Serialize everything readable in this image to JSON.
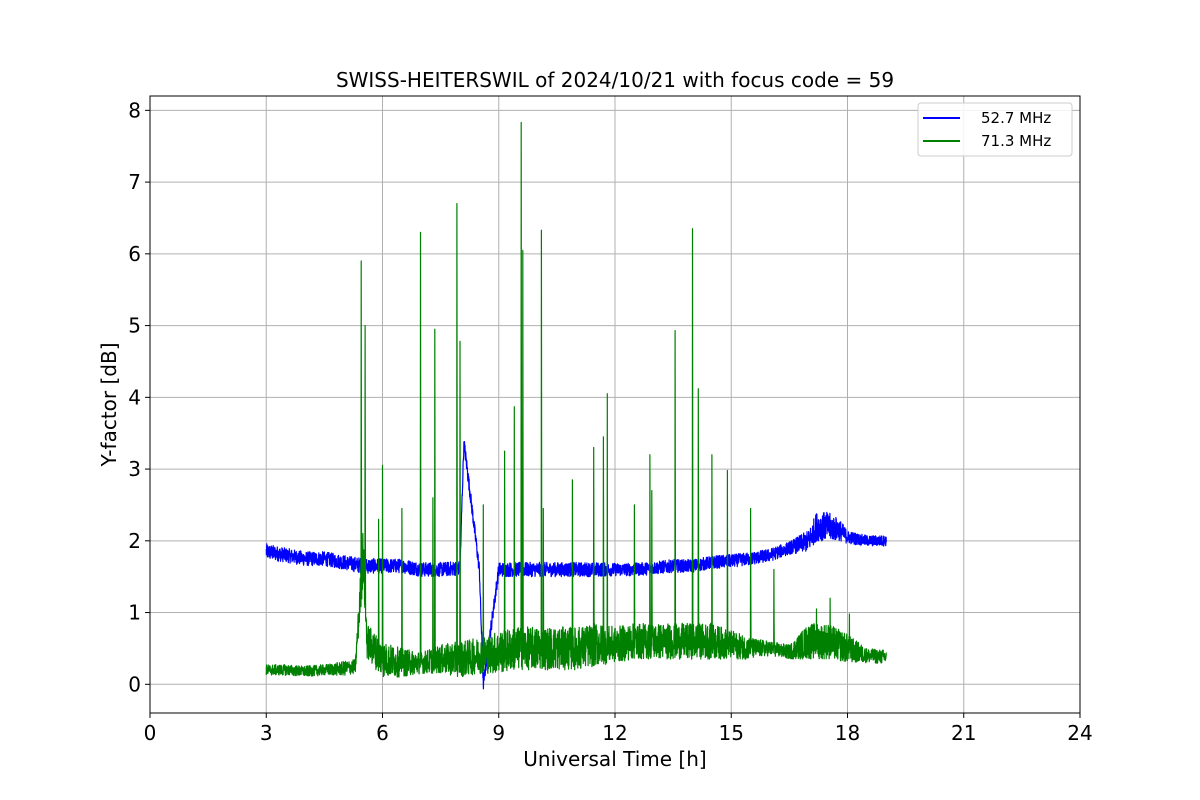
{
  "chart_data": {
    "type": "line",
    "title": "SWISS-HEITERSWIL of 2024/10/21 with focus code = 59",
    "xlabel": "Universal Time [h]",
    "ylabel": "Y-factor [dB]",
    "xlim": [
      0,
      24
    ],
    "ylim": [
      -0.4,
      8.2
    ],
    "xticks": [
      0,
      3,
      6,
      9,
      12,
      15,
      18,
      21,
      24
    ],
    "yticks": [
      0,
      1,
      2,
      3,
      4,
      5,
      6,
      7,
      8
    ],
    "grid": true,
    "legend_position": "top-right",
    "series": [
      {
        "name": "52.7 MHz",
        "color": "#0000ff",
        "x": [
          3.0,
          3.5,
          4.0,
          4.5,
          5.0,
          5.5,
          6.0,
          6.5,
          7.0,
          7.5,
          8.0,
          8.1,
          8.5,
          8.6,
          9.0,
          9.5,
          10.0,
          10.5,
          11.0,
          11.5,
          12.0,
          12.5,
          13.0,
          13.5,
          14.0,
          14.5,
          15.0,
          15.5,
          16.0,
          16.5,
          17.0,
          17.2,
          17.5,
          17.8,
          18.0,
          18.5,
          19.0
        ],
        "y": [
          1.85,
          1.8,
          1.75,
          1.75,
          1.7,
          1.65,
          1.65,
          1.65,
          1.6,
          1.6,
          1.62,
          3.38,
          1.6,
          0.0,
          1.6,
          1.6,
          1.6,
          1.6,
          1.6,
          1.6,
          1.6,
          1.6,
          1.62,
          1.65,
          1.65,
          1.7,
          1.72,
          1.75,
          1.8,
          1.9,
          2.0,
          2.2,
          2.2,
          2.15,
          2.05,
          2.0,
          2.0
        ],
        "band": [
          0.22,
          0.2,
          0.2,
          0.2,
          0.2,
          0.22,
          0.2,
          0.2,
          0.2,
          0.2,
          0.2,
          0.2,
          0.2,
          0.2,
          0.2,
          0.2,
          0.2,
          0.2,
          0.2,
          0.2,
          0.18,
          0.18,
          0.18,
          0.18,
          0.18,
          0.18,
          0.18,
          0.18,
          0.18,
          0.18,
          0.3,
          0.4,
          0.4,
          0.3,
          0.18,
          0.15,
          0.15
        ]
      },
      {
        "name": "71.3 MHz",
        "color": "#008000",
        "x": [
          3.0,
          3.5,
          4.0,
          4.5,
          5.0,
          5.3,
          5.5,
          5.6,
          6.0,
          6.5,
          7.0,
          7.5,
          8.0,
          8.5,
          9.0,
          9.5,
          10.0,
          10.5,
          11.0,
          11.5,
          12.0,
          12.5,
          13.0,
          13.5,
          14.0,
          14.5,
          15.0,
          15.5,
          16.0,
          16.5,
          17.0,
          17.5,
          18.0,
          18.5,
          19.0
        ],
        "y": [
          0.2,
          0.2,
          0.18,
          0.2,
          0.22,
          0.25,
          1.8,
          0.6,
          0.35,
          0.3,
          0.3,
          0.35,
          0.35,
          0.4,
          0.45,
          0.5,
          0.5,
          0.5,
          0.5,
          0.55,
          0.55,
          0.6,
          0.6,
          0.6,
          0.6,
          0.6,
          0.55,
          0.5,
          0.5,
          0.45,
          0.6,
          0.6,
          0.5,
          0.4,
          0.38
        ],
        "band": [
          0.15,
          0.15,
          0.15,
          0.15,
          0.2,
          0.2,
          0.8,
          0.5,
          0.5,
          0.4,
          0.3,
          0.4,
          0.5,
          0.5,
          0.6,
          0.6,
          0.6,
          0.6,
          0.6,
          0.6,
          0.5,
          0.5,
          0.5,
          0.5,
          0.5,
          0.5,
          0.4,
          0.3,
          0.2,
          0.2,
          0.5,
          0.5,
          0.4,
          0.2,
          0.2
        ],
        "spikes": [
          {
            "x": 5.45,
            "y": 5.9
          },
          {
            "x": 5.55,
            "y": 5.0
          },
          {
            "x": 5.9,
            "y": 2.3
          },
          {
            "x": 6.0,
            "y": 3.05
          },
          {
            "x": 6.5,
            "y": 2.45
          },
          {
            "x": 6.98,
            "y": 6.3
          },
          {
            "x": 7.35,
            "y": 4.95
          },
          {
            "x": 7.3,
            "y": 2.6
          },
          {
            "x": 7.92,
            "y": 6.7
          },
          {
            "x": 8.0,
            "y": 4.78
          },
          {
            "x": 8.6,
            "y": 2.5
          },
          {
            "x": 9.15,
            "y": 3.25
          },
          {
            "x": 9.4,
            "y": 3.87
          },
          {
            "x": 9.58,
            "y": 7.83
          },
          {
            "x": 9.62,
            "y": 6.05
          },
          {
            "x": 10.1,
            "y": 6.33
          },
          {
            "x": 10.15,
            "y": 2.45
          },
          {
            "x": 10.9,
            "y": 2.85
          },
          {
            "x": 11.45,
            "y": 3.3
          },
          {
            "x": 11.7,
            "y": 3.45
          },
          {
            "x": 11.8,
            "y": 4.05
          },
          {
            "x": 12.5,
            "y": 2.5
          },
          {
            "x": 12.9,
            "y": 3.2
          },
          {
            "x": 12.95,
            "y": 2.7
          },
          {
            "x": 13.55,
            "y": 4.93
          },
          {
            "x": 14.0,
            "y": 6.35
          },
          {
            "x": 14.15,
            "y": 4.12
          },
          {
            "x": 14.5,
            "y": 3.2
          },
          {
            "x": 14.9,
            "y": 2.98
          },
          {
            "x": 15.5,
            "y": 2.45
          },
          {
            "x": 16.1,
            "y": 1.6
          },
          {
            "x": 17.2,
            "y": 1.05
          },
          {
            "x": 17.55,
            "y": 1.2
          },
          {
            "x": 18.05,
            "y": 0.98
          }
        ]
      }
    ]
  }
}
